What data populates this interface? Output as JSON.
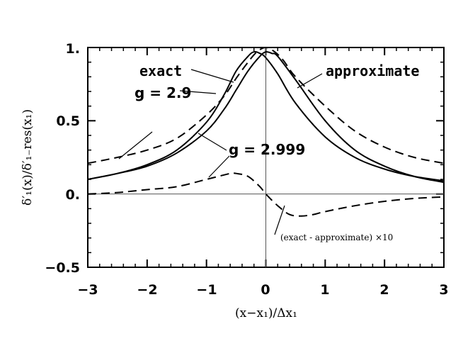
{
  "chart_data": {
    "type": "line",
    "xlabel": "(x−x₁)/Δx₁",
    "ylabel": "δ′₁(x)/δ′₁₋res(x₁)",
    "xlim": [
      -3,
      3
    ],
    "ylim": [
      -0.5,
      1
    ],
    "xticks": [
      -3,
      -2,
      -1,
      0,
      1,
      2,
      3
    ],
    "xtick_labels": [
      "−3",
      "−2",
      "−1",
      "0",
      "1",
      "2",
      "3"
    ],
    "yticks": [
      -0.5,
      0,
      0.5,
      1
    ],
    "ytick_labels": [
      "−0.5",
      "0.",
      "0.5",
      "1."
    ],
    "grid": false,
    "reference_lines": {
      "x": 0,
      "y": 0
    },
    "series": [
      {
        "name": "exact g = 2.9",
        "style": "solid",
        "x": [
          -3,
          -2.5,
          -2,
          -1.5,
          -1,
          -0.7,
          -0.5,
          -0.3,
          -0.2,
          -0.1,
          0,
          0.2,
          0.5,
          1,
          1.5,
          2,
          2.5,
          3
        ],
        "y": [
          0.1,
          0.14,
          0.2,
          0.3,
          0.49,
          0.68,
          0.84,
          0.94,
          0.97,
          0.96,
          0.93,
          0.82,
          0.62,
          0.39,
          0.25,
          0.17,
          0.12,
          0.09
        ]
      },
      {
        "name": "exact g = 2.999",
        "style": "solid",
        "x": [
          -3,
          -2.5,
          -2,
          -1.5,
          -1,
          -0.7,
          -0.5,
          -0.3,
          -0.1,
          0,
          0.1,
          0.2,
          0.5,
          1,
          1.5,
          2,
          2.5,
          3
        ],
        "y": [
          0.1,
          0.14,
          0.19,
          0.28,
          0.43,
          0.58,
          0.71,
          0.84,
          0.94,
          0.97,
          0.96,
          0.94,
          0.78,
          0.5,
          0.3,
          0.19,
          0.12,
          0.08
        ]
      },
      {
        "name": "approximate",
        "style": "dashed",
        "x": [
          -3,
          -2.5,
          -2,
          -1.5,
          -1,
          -0.7,
          -0.5,
          -0.3,
          -0.15,
          0,
          0.15,
          0.3,
          0.5,
          1,
          1.5,
          2,
          2.5,
          3
        ],
        "y": [
          0.21,
          0.25,
          0.3,
          0.38,
          0.54,
          0.67,
          0.79,
          0.9,
          0.97,
          1.0,
          0.97,
          0.91,
          0.8,
          0.6,
          0.43,
          0.32,
          0.25,
          0.21
        ]
      },
      {
        "name": "(exact - approximate) x10",
        "style": "dashed",
        "x": [
          -3,
          -2.5,
          -2,
          -1.5,
          -1,
          -0.8,
          -0.6,
          -0.5,
          -0.3,
          -0.1,
          0,
          0.2,
          0.4,
          0.6,
          0.8,
          1,
          1.5,
          2,
          2.5,
          3
        ],
        "y": [
          0.0,
          0.01,
          0.03,
          0.05,
          0.1,
          0.12,
          0.14,
          0.14,
          0.12,
          0.05,
          0.0,
          -0.08,
          -0.14,
          -0.15,
          -0.14,
          -0.12,
          -0.08,
          -0.05,
          -0.03,
          -0.02
        ]
      }
    ],
    "annotations": [
      "exact",
      "approximate",
      "g = 2.9",
      "g = 2.999",
      "(exact - approximate) ×10"
    ]
  }
}
